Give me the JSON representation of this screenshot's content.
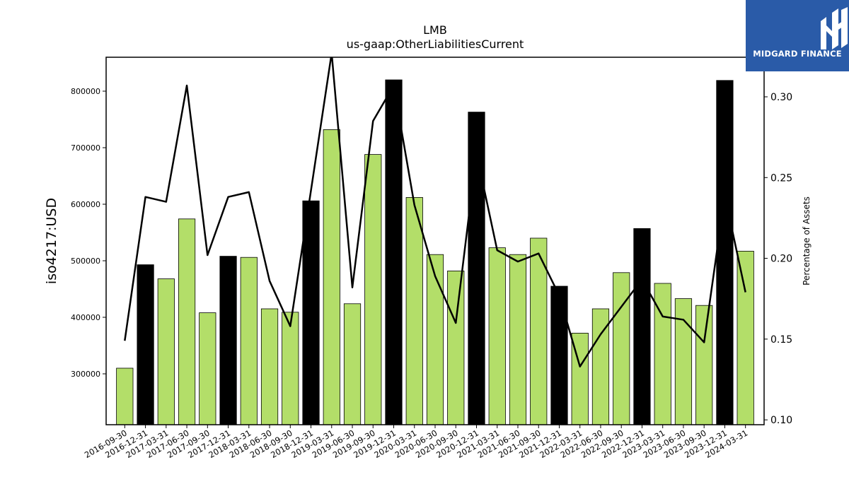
{
  "brand": {
    "name": "MIDGARD FINANCE",
    "logo_color": "#2a5ba8"
  },
  "chart_data": {
    "type": "bar",
    "title": "LMB",
    "subtitle": "us-gaap:OtherLiabilitiesCurrent",
    "ylabel": "iso4217:USD",
    "y2label": "Percentage of Assets",
    "ylim": [
      210000,
      860000
    ],
    "y2lim": [
      0.097,
      0.3245
    ],
    "yticks": [
      300000,
      400000,
      500000,
      600000,
      700000,
      800000
    ],
    "y2ticks": [
      "0.10",
      "0.15",
      "0.20",
      "0.25",
      "0.30"
    ],
    "categories": [
      "2016-09-30",
      "2016-12-31",
      "2017-03-31",
      "2017-06-30",
      "2017-09-30",
      "2017-12-31",
      "2018-03-31",
      "2018-06-30",
      "2018-09-30",
      "2018-12-31",
      "2019-03-31",
      "2019-06-30",
      "2019-09-30",
      "2019-12-31",
      "2020-03-31",
      "2020-06-30",
      "2020-09-30",
      "2020-12-31",
      "2021-03-31",
      "2021-06-30",
      "2021-09-30",
      "2021-12-31",
      "2022-03-31",
      "2022-06-30",
      "2022-09-30",
      "2022-12-31",
      "2023-03-31",
      "2023-06-30",
      "2023-09-30",
      "2023-12-31",
      "2024-03-31"
    ],
    "series": [
      {
        "values": [
          310000,
          493000,
          468000,
          574000,
          408000,
          508000,
          506000,
          415000,
          409000,
          606000,
          732000,
          424000,
          688000,
          820000,
          612000,
          511000,
          482000,
          763000,
          523000,
          511000,
          540000,
          455000,
          372000,
          415000,
          479000,
          557000,
          460000,
          433000,
          421000,
          819000,
          517000
        ],
        "colors": [
          "#b3de69",
          "#000000",
          "#b3de69",
          "#b3de69",
          "#b3de69",
          "#000000",
          "#b3de69",
          "#b3de69",
          "#b3de69",
          "#000000",
          "#b3de69",
          "#b3de69",
          "#b3de69",
          "#000000",
          "#b3de69",
          "#b3de69",
          "#b3de69",
          "#000000",
          "#b3de69",
          "#b3de69",
          "#b3de69",
          "#000000",
          "#b3de69",
          "#b3de69",
          "#b3de69",
          "#000000",
          "#b3de69",
          "#b3de69",
          "#b3de69",
          "#000000",
          "#b3de69"
        ]
      },
      {
        "type": "line",
        "axis": "secondary",
        "color": "#000000",
        "values": [
          0.149,
          0.238,
          0.235,
          0.307,
          0.202,
          0.238,
          0.241,
          0.186,
          0.158,
          0.242,
          0.327,
          0.182,
          0.285,
          0.307,
          0.233,
          0.189,
          0.16,
          0.265,
          0.205,
          0.198,
          0.203,
          0.177,
          0.133,
          0.153,
          0.17,
          0.187,
          0.164,
          0.162,
          0.148,
          0.239,
          0.179
        ]
      }
    ],
    "grid": false
  }
}
